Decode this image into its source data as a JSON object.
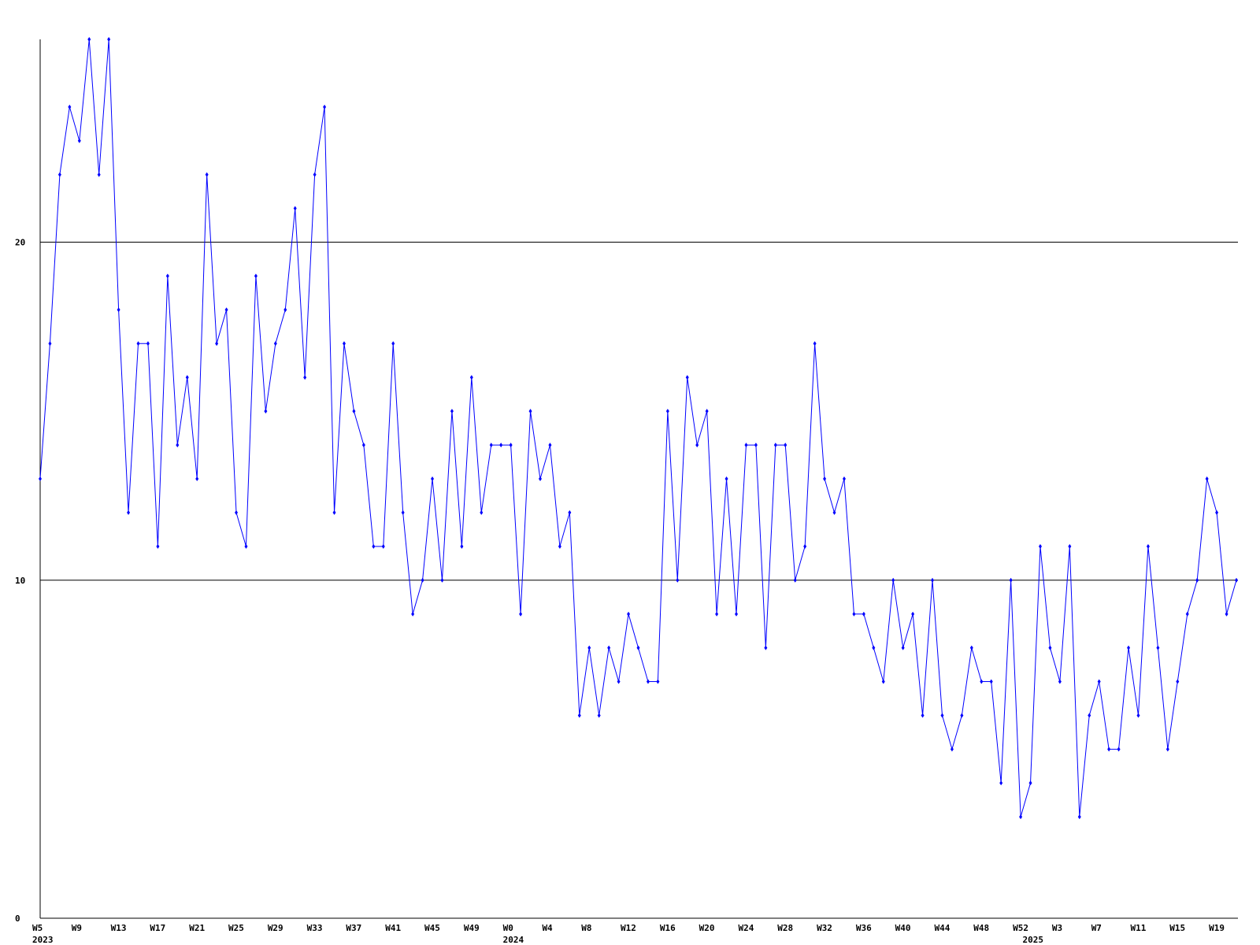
{
  "chart_data": {
    "type": "line",
    "categories": [
      "W5",
      null,
      null,
      null,
      "W9",
      null,
      null,
      null,
      "W13",
      null,
      null,
      null,
      "W17",
      null,
      null,
      null,
      "W21",
      null,
      null,
      null,
      "W25",
      null,
      null,
      null,
      "W29",
      null,
      null,
      null,
      "W33",
      null,
      null,
      null,
      "W37",
      null,
      null,
      null,
      "W41",
      null,
      null,
      null,
      "W45",
      null,
      null,
      null,
      "W49",
      null,
      null,
      null,
      "W0",
      null,
      null,
      null,
      "W4",
      null,
      null,
      null,
      "W8",
      null,
      null,
      null,
      "W12",
      null,
      null,
      null,
      "W16",
      null,
      null,
      null,
      "W20",
      null,
      null,
      null,
      "W24",
      null,
      null,
      null,
      "W28",
      null,
      null,
      null,
      "W32",
      null,
      null,
      null,
      "W36",
      null,
      null,
      null,
      "W40",
      null,
      null,
      null,
      "W44",
      null,
      null,
      null,
      "W48",
      null,
      null,
      null,
      "W52",
      null,
      null,
      null,
      "W3",
      null,
      null,
      null,
      "W7",
      null,
      null,
      null,
      "W11",
      null,
      null,
      null,
      "W15",
      null,
      null,
      null,
      "W19",
      null,
      null
    ],
    "years": [
      "2023",
      null,
      null,
      null,
      null,
      null,
      null,
      null,
      null,
      null,
      null,
      null,
      null,
      null,
      null,
      null,
      null,
      null,
      null,
      null,
      null,
      null,
      null,
      null,
      null,
      null,
      null,
      null,
      null,
      null,
      null,
      null,
      null,
      null,
      null,
      null,
      null,
      null,
      null,
      null,
      null,
      null,
      null,
      null,
      null,
      null,
      null,
      null,
      "2024",
      null,
      null,
      null,
      null,
      null,
      null,
      null,
      null,
      null,
      null,
      null,
      null,
      null,
      null,
      null,
      null,
      null,
      null,
      null,
      null,
      null,
      null,
      null,
      null,
      null,
      null,
      null,
      null,
      null,
      null,
      null,
      null,
      null,
      null,
      null,
      null,
      null,
      null,
      null,
      null,
      null,
      null,
      null,
      null,
      null,
      null,
      null,
      null,
      null,
      null,
      null,
      null,
      "2025",
      null,
      null,
      null,
      null,
      null,
      null,
      null,
      null,
      null,
      null,
      null,
      null,
      null,
      null,
      null,
      null,
      null,
      null,
      null,
      null,
      null
    ],
    "series": [
      {
        "color": "#0000ff",
        "values": [
          13,
          17,
          22,
          24,
          23,
          26,
          22,
          26,
          18,
          12,
          17,
          17,
          11,
          19,
          14,
          16,
          13,
          22,
          17,
          18,
          12,
          11,
          19,
          15,
          17,
          18,
          21,
          16,
          22,
          24,
          12,
          17,
          15,
          14,
          11,
          11,
          17,
          12,
          9,
          10,
          13,
          10,
          15,
          11,
          16,
          12,
          14,
          14,
          14,
          9,
          15,
          13,
          14,
          11,
          12,
          6,
          8,
          6,
          8,
          7,
          9,
          8,
          7,
          7,
          15,
          10,
          16,
          14,
          15,
          9,
          13,
          9,
          14,
          14,
          8,
          14,
          14,
          10,
          11,
          17,
          13,
          12,
          13,
          9,
          9,
          8,
          7,
          10,
          8,
          9,
          6,
          10,
          6,
          5,
          6,
          8,
          7,
          7,
          4,
          10,
          3,
          4,
          11,
          8,
          7,
          11,
          3,
          6,
          7,
          5,
          5,
          8,
          6,
          11,
          8,
          5,
          7,
          9,
          10,
          13,
          12,
          9,
          10
        ]
      }
    ],
    "ylim": [
      0,
      26
    ],
    "yticks": [
      0,
      10,
      20
    ],
    "grid": true
  }
}
